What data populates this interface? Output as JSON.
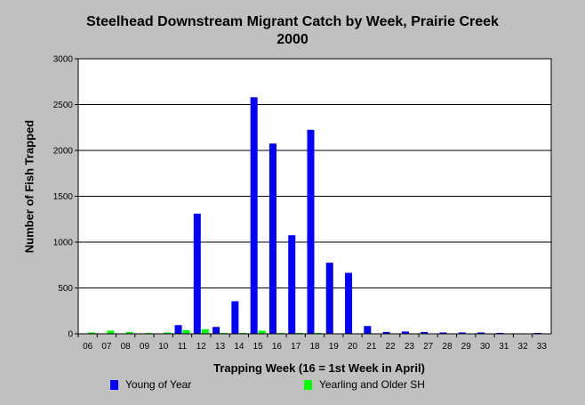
{
  "chart_data": {
    "type": "bar",
    "title": "Steelhead Downstream Migrant Catch by Week, Prairie Creek",
    "subtitle": "2000",
    "xlabel": "Trapping Week (16 = 1st Week in April)",
    "ylabel": "Number of Fish Trapped",
    "ylim": [
      0,
      3000
    ],
    "yticks": [
      0,
      500,
      1000,
      1500,
      2000,
      2500,
      3000
    ],
    "grid": true,
    "legend_position": "bottom",
    "categories": [
      "06",
      "07",
      "08",
      "09",
      "10",
      "11",
      "12",
      "13",
      "14",
      "15",
      "16",
      "17",
      "18",
      "19",
      "20",
      "21",
      "22",
      "23",
      "27",
      "28",
      "29",
      "30",
      "31",
      "32",
      "33"
    ],
    "series": [
      {
        "name": "Young of Year",
        "color": "#0000ff",
        "values": [
          0,
          0,
          0,
          0,
          0,
          95,
          1310,
          75,
          355,
          2580,
          2075,
          1075,
          2225,
          775,
          665,
          85,
          20,
          25,
          20,
          15,
          15,
          15,
          10,
          5,
          10
        ]
      },
      {
        "name": "Yearling and Older SH",
        "color": "#00ff00",
        "values": [
          15,
          35,
          20,
          10,
          15,
          40,
          50,
          10,
          10,
          35,
          10,
          10,
          10,
          5,
          5,
          5,
          5,
          0,
          0,
          0,
          0,
          0,
          0,
          0,
          0
        ]
      }
    ]
  }
}
